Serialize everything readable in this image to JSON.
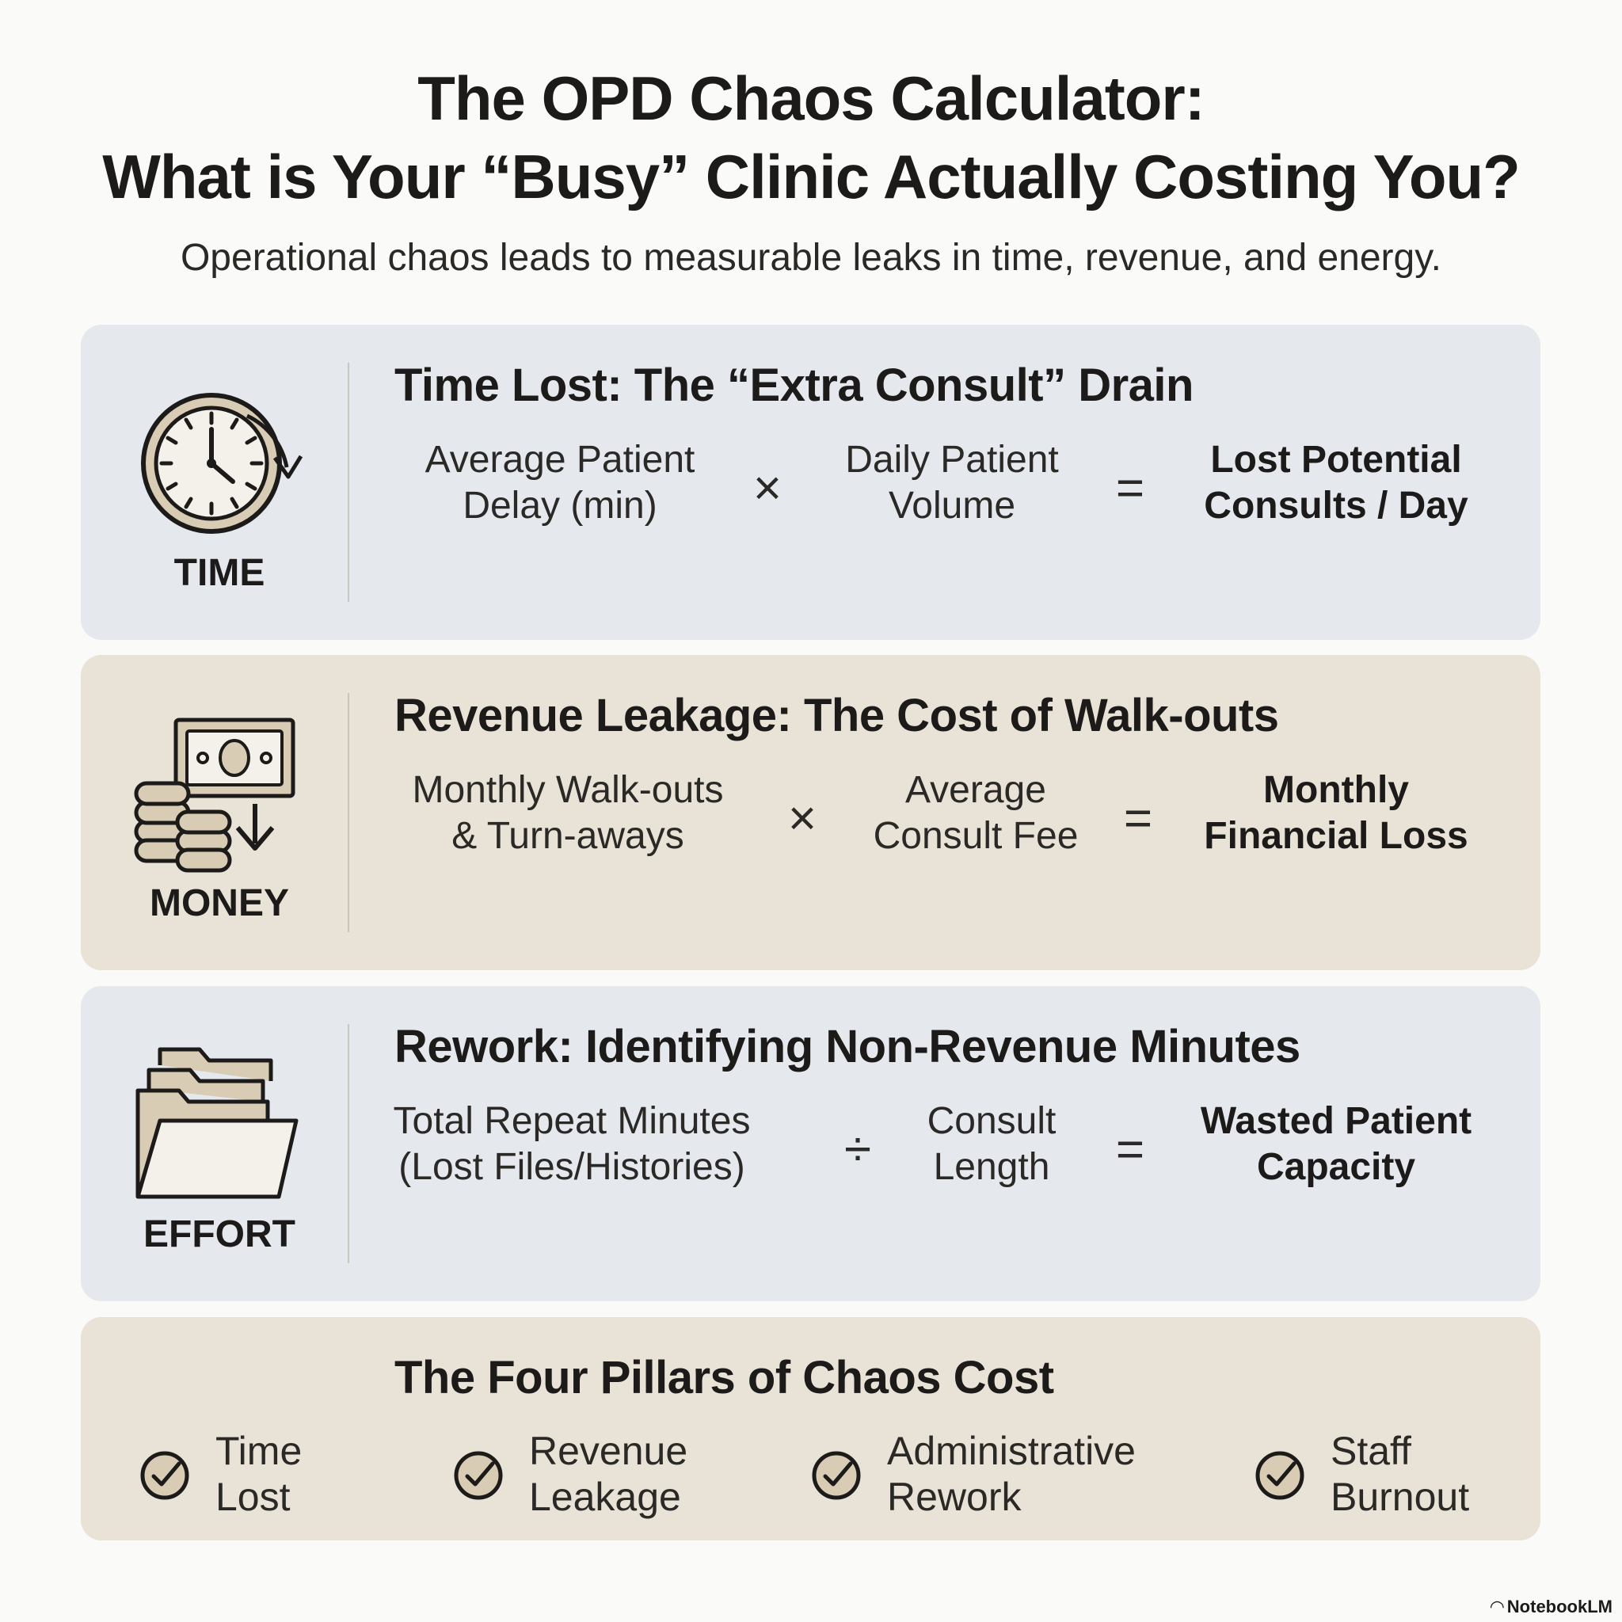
{
  "header": {
    "title_line1": "The OPD Chaos Calculator:",
    "title_line2": "What is Your “Busy” Clinic Actually Costing You?",
    "subtitle": "Operational chaos leads to measurable leaks in time, revenue, and energy."
  },
  "sections": [
    {
      "icon": "clock-icon",
      "label": "TIME",
      "title": "Time Lost: The “Extra Consult” Drain",
      "term1": [
        "Average Patient",
        "Delay (min)"
      ],
      "operator": "×",
      "term2": [
        "Daily Patient",
        "Volume"
      ],
      "equals": "=",
      "result": [
        "Lost Potential",
        "Consults / Day"
      ]
    },
    {
      "icon": "money-icon",
      "label": "MONEY",
      "title": "Revenue Leakage: The Cost of Walk-outs",
      "term1": [
        "Monthly Walk-outs",
        "& Turn-aways"
      ],
      "operator": "×",
      "term2": [
        "Average",
        "Consult Fee"
      ],
      "equals": "=",
      "result": [
        "Monthly",
        "Financial Loss"
      ]
    },
    {
      "icon": "folder-icon",
      "label": "EFFORT",
      "title": "Rework: Identifying Non-Revenue Minutes",
      "term1": [
        "Total Repeat Minutes",
        "(Lost Files/Histories)"
      ],
      "operator": "÷",
      "term2": [
        "Consult",
        "Length"
      ],
      "equals": "=",
      "result": [
        "Wasted Patient",
        "Capacity"
      ]
    }
  ],
  "pillars": {
    "title": "The Four Pillars of Chaos Cost",
    "items": [
      [
        "Time",
        "Lost"
      ],
      [
        "Revenue",
        "Leakage"
      ],
      [
        "Administrative",
        "Rework"
      ],
      [
        "Staff",
        "Burnout"
      ]
    ]
  },
  "brand": "NotebookLM",
  "colors": {
    "panel_blue": "#e5e9ee",
    "panel_tan": "#e9e2d6",
    "icon_fill": "#d9ccb4",
    "icon_stroke": "#1c1b19"
  }
}
